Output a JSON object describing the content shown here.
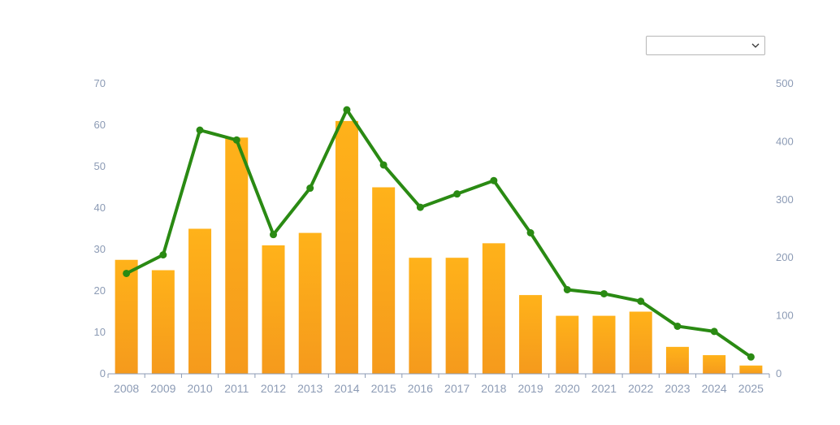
{
  "dropdown": {
    "selected": "",
    "icon": "chevron-down-icon"
  },
  "chart_data": {
    "type": "bar",
    "categories": [
      "2008",
      "2009",
      "2010",
      "2011",
      "2012",
      "2013",
      "2014",
      "2015",
      "2016",
      "2017",
      "2018",
      "2019",
      "2020",
      "2021",
      "2022",
      "2023",
      "2024",
      "2025"
    ],
    "series": [
      {
        "type": "bar",
        "axis": "left",
        "color": "#f5a623",
        "values": [
          27.5,
          25,
          35,
          57,
          31,
          34,
          61,
          45,
          28,
          28,
          31.5,
          19,
          14,
          14,
          15,
          6.5,
          4.5,
          2
        ]
      },
      {
        "type": "line",
        "axis": "right",
        "color": "#2a8a13",
        "values": [
          173,
          205,
          420,
          403,
          240,
          320,
          455,
          360,
          287,
          310,
          333,
          243,
          145,
          138,
          125,
          82,
          73,
          29
        ]
      }
    ],
    "y_left": {
      "min": 0,
      "max": 70,
      "ticks": [
        "0",
        "10",
        "20",
        "30",
        "40",
        "50",
        "60",
        "70"
      ]
    },
    "y_right": {
      "min": 0,
      "max": 500,
      "ticks": [
        "0",
        "100",
        "200",
        "300",
        "400",
        "500"
      ]
    },
    "title": "",
    "xlabel": "",
    "ylabel": "",
    "grid": false,
    "legend": false
  }
}
